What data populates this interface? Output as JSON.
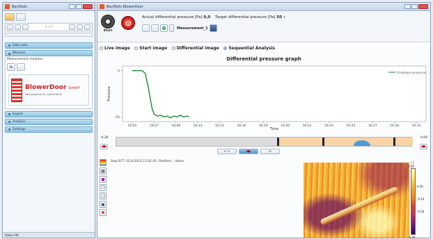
{
  "left_window": {
    "title": "BauTools",
    "nav": {
      "page_info": "1 / 1"
    },
    "panels": [
      {
        "label": "Data sets"
      },
      {
        "label": "Modules"
      }
    ],
    "modules": {
      "section_label": "Measurement modules"
    },
    "logo": {
      "brand": "BlowerDoor",
      "suffix": "GmbH",
      "tagline": "Messsysteme für Luftdichtheit"
    },
    "bottom_panels": [
      {
        "label": "Export"
      },
      {
        "label": "Analysis"
      },
      {
        "label": "Settings"
      }
    ],
    "status": "Status OK"
  },
  "main_window": {
    "title": "BauTools BlowerDoor",
    "start_label": "Start",
    "actual_label": "Actual differential pressure [Pa]",
    "actual_value": "0,0",
    "target_label": "Target differential pressure [Pa]",
    "target_value": "50",
    "measurement_name": "Measurement_1",
    "view_options": [
      {
        "label": "Live image",
        "selected": false
      },
      {
        "label": "Start image",
        "selected": false
      },
      {
        "label": "Differential image",
        "selected": false
      },
      {
        "label": "Sequential Analysis",
        "selected": true
      }
    ]
  },
  "timeline": {
    "left_value": "-0,36",
    "right_value": "0,09"
  },
  "thermal": {
    "info_text": "Seq.OCT: 12.8.2013 11:01:41, Position: , Value:",
    "colorbar_unit": "[-]",
    "colorbar_ticks": [
      "0.09",
      "0.00",
      "-0.10",
      "-0.20",
      "-0.36"
    ],
    "colors": {
      "top": "#ffffb0",
      "mid": "#f08a1e",
      "low": "#c0305a",
      "bottom": "#2a0a5a"
    }
  },
  "chart_data": {
    "type": "line",
    "title": "Differential pressure graph",
    "xlabel": "Time",
    "ylabel": "Pressure",
    "x_ticks": [
      "16:05",
      "16:07",
      "16:09",
      "16:12",
      "16:14",
      "16:16",
      "16:18",
      "16:20",
      "16:21",
      "16:23",
      "16:25",
      "16:27",
      "16:30",
      "16:32"
    ],
    "y_ticks": [
      "0",
      "-50"
    ],
    "ylim": [
      -55,
      5
    ],
    "grid": false,
    "legend_position": "top-right",
    "series": [
      {
        "name": "Envelope pressure",
        "color": "#1a8a2a",
        "values": [
          [
            0.0,
            0
          ],
          [
            0.45,
            0
          ],
          [
            0.6,
            -3
          ],
          [
            0.75,
            -20
          ],
          [
            0.9,
            -40
          ],
          [
            1.0,
            -47
          ],
          [
            1.15,
            -49
          ],
          [
            1.3,
            -48
          ],
          [
            1.45,
            -50
          ],
          [
            1.6,
            -49
          ],
          [
            1.75,
            -51
          ],
          [
            1.9,
            -49
          ],
          [
            2.05,
            -50
          ],
          [
            2.2,
            -48
          ],
          [
            2.35,
            -50
          ],
          [
            2.5,
            -49
          ],
          [
            2.6,
            -50
          ]
        ]
      }
    ]
  }
}
